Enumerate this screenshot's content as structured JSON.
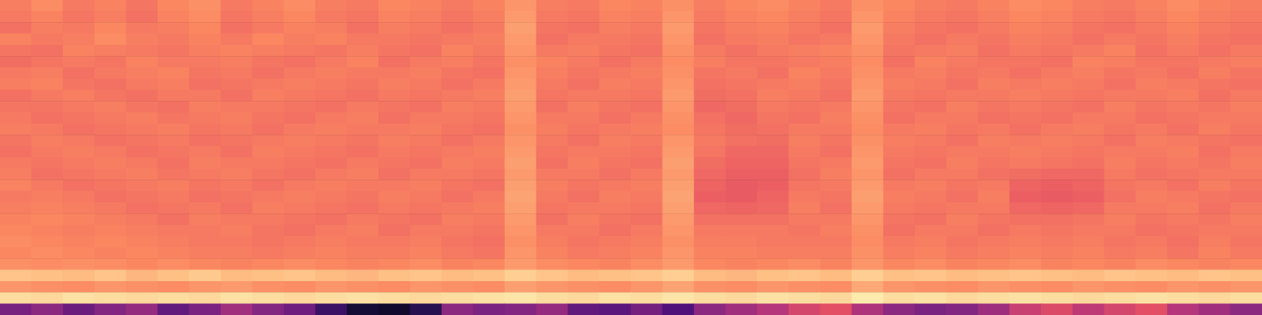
{
  "chart_data": {
    "type": "heatmap",
    "tick_labels": false,
    "zlim": [
      0,
      100
    ],
    "cells": [
      [
        73,
        76,
        72,
        74,
        71,
        75,
        77,
        72,
        74,
        76,
        73,
        72,
        75,
        74,
        72,
        74,
        78,
        73,
        72,
        75,
        74,
        77,
        73,
        75,
        76,
        74,
        72,
        77,
        75,
        73,
        72,
        74,
        76,
        75,
        73,
        72,
        74,
        76,
        74,
        73
      ],
      [
        72,
        74,
        71,
        73,
        70,
        74,
        76,
        71,
        73,
        75,
        72,
        71,
        74,
        73,
        71,
        73,
        79,
        72,
        71,
        74,
        73,
        78,
        72,
        74,
        75,
        73,
        71,
        78,
        74,
        72,
        71,
        73,
        75,
        74,
        72,
        71,
        73,
        75,
        73,
        72
      ],
      [
        70,
        73,
        72,
        75,
        72,
        73,
        75,
        70,
        72,
        74,
        73,
        70,
        73,
        72,
        70,
        72,
        80,
        71,
        70,
        73,
        72,
        79,
        71,
        73,
        74,
        72,
        70,
        79,
        73,
        71,
        70,
        72,
        74,
        73,
        71,
        70,
        72,
        74,
        72,
        71
      ],
      [
        74,
        72,
        73,
        76,
        73,
        72,
        74,
        72,
        75,
        73,
        74,
        72,
        72,
        71,
        72,
        73,
        79,
        70,
        72,
        72,
        71,
        78,
        70,
        72,
        73,
        71,
        72,
        78,
        72,
        70,
        72,
        71,
        73,
        72,
        70,
        72,
        71,
        73,
        71,
        70
      ],
      [
        71,
        70,
        74,
        73,
        72,
        71,
        73,
        74,
        73,
        72,
        71,
        73,
        71,
        70,
        74,
        72,
        78,
        72,
        73,
        71,
        70,
        77,
        72,
        70,
        72,
        73,
        74,
        77,
        71,
        72,
        73,
        70,
        72,
        71,
        72,
        74,
        70,
        72,
        70,
        72
      ],
      [
        69,
        71,
        72,
        71,
        74,
        72,
        72,
        73,
        71,
        70,
        72,
        74,
        70,
        72,
        73,
        71,
        77,
        74,
        72,
        70,
        72,
        76,
        73,
        71,
        71,
        72,
        73,
        76,
        70,
        74,
        72,
        71,
        71,
        70,
        74,
        73,
        71,
        71,
        72,
        73
      ],
      [
        72,
        73,
        70,
        72,
        73,
        74,
        71,
        72,
        70,
        72,
        73,
        72,
        72,
        73,
        71,
        70,
        78,
        73,
        71,
        72,
        73,
        77,
        71,
        72,
        70,
        74,
        72,
        77,
        72,
        73,
        71,
        72,
        70,
        72,
        73,
        71,
        72,
        70,
        73,
        71
      ],
      [
        73,
        74,
        71,
        70,
        72,
        73,
        70,
        71,
        72,
        73,
        72,
        71,
        73,
        72,
        70,
        72,
        79,
        72,
        70,
        73,
        72,
        78,
        70,
        71,
        72,
        73,
        71,
        78,
        73,
        72,
        70,
        73,
        72,
        73,
        72,
        70,
        73,
        72,
        71,
        70
      ],
      [
        70,
        72,
        73,
        71,
        70,
        72,
        72,
        70,
        73,
        72,
        71,
        70,
        72,
        71,
        72,
        73,
        80,
        71,
        72,
        72,
        71,
        79,
        69,
        70,
        73,
        72,
        70,
        79,
        72,
        71,
        72,
        72,
        73,
        72,
        71,
        72,
        72,
        73,
        70,
        72
      ],
      [
        71,
        71,
        72,
        73,
        71,
        70,
        73,
        72,
        72,
        71,
        70,
        72,
        71,
        70,
        73,
        72,
        79,
        70,
        73,
        71,
        70,
        78,
        68,
        69,
        72,
        71,
        72,
        78,
        71,
        70,
        73,
        71,
        72,
        71,
        70,
        73,
        71,
        72,
        71,
        73
      ],
      [
        72,
        70,
        71,
        72,
        73,
        71,
        72,
        73,
        71,
        70,
        72,
        73,
        70,
        72,
        72,
        71,
        78,
        72,
        72,
        70,
        72,
        77,
        70,
        68,
        71,
        70,
        73,
        77,
        70,
        72,
        72,
        70,
        71,
        70,
        72,
        72,
        70,
        71,
        72,
        72
      ],
      [
        73,
        72,
        70,
        71,
        72,
        73,
        71,
        72,
        70,
        72,
        73,
        72,
        72,
        73,
        71,
        70,
        77,
        73,
        71,
        72,
        73,
        76,
        71,
        69,
        70,
        72,
        72,
        76,
        72,
        73,
        71,
        72,
        70,
        72,
        73,
        71,
        72,
        70,
        73,
        71
      ],
      [
        71,
        73,
        72,
        70,
        71,
        72,
        70,
        71,
        72,
        73,
        72,
        71,
        73,
        72,
        70,
        72,
        78,
        72,
        70,
        73,
        72,
        78,
        72,
        70,
        69,
        73,
        71,
        77,
        73,
        72,
        70,
        73,
        72,
        73,
        72,
        70,
        73,
        72,
        71,
        70
      ],
      [
        70,
        72,
        73,
        72,
        70,
        71,
        72,
        70,
        73,
        72,
        71,
        70,
        72,
        71,
        72,
        73,
        79,
        71,
        72,
        72,
        71,
        79,
        71,
        68,
        68,
        72,
        70,
        78,
        72,
        71,
        72,
        72,
        73,
        72,
        71,
        72,
        72,
        73,
        70,
        72
      ],
      [
        72,
        71,
        72,
        73,
        72,
        70,
        73,
        72,
        72,
        71,
        70,
        72,
        71,
        70,
        73,
        72,
        80,
        70,
        73,
        71,
        70,
        80,
        69,
        67,
        67,
        71,
        72,
        79,
        71,
        70,
        73,
        71,
        72,
        71,
        70,
        73,
        71,
        72,
        71,
        73
      ],
      [
        73,
        70,
        71,
        72,
        73,
        71,
        72,
        73,
        71,
        70,
        72,
        73,
        70,
        72,
        72,
        71,
        79,
        72,
        72,
        70,
        72,
        79,
        68,
        66,
        66,
        70,
        73,
        78,
        70,
        72,
        72,
        70,
        69,
        68,
        68,
        72,
        70,
        71,
        72,
        72
      ],
      [
        74,
        72,
        70,
        71,
        72,
        73,
        71,
        72,
        70,
        72,
        73,
        72,
        72,
        73,
        71,
        70,
        80,
        73,
        71,
        72,
        73,
        80,
        67,
        65,
        66,
        71,
        72,
        79,
        72,
        73,
        71,
        72,
        67,
        66,
        67,
        71,
        72,
        70,
        73,
        71
      ],
      [
        72,
        73,
        72,
        70,
        71,
        72,
        70,
        71,
        72,
        73,
        72,
        71,
        73,
        72,
        70,
        72,
        81,
        72,
        70,
        73,
        72,
        81,
        66,
        65,
        67,
        72,
        71,
        80,
        73,
        72,
        70,
        73,
        66,
        65,
        66,
        70,
        73,
        72,
        71,
        70
      ],
      [
        73,
        74,
        73,
        72,
        70,
        71,
        72,
        70,
        73,
        72,
        71,
        70,
        72,
        71,
        72,
        73,
        80,
        71,
        72,
        72,
        71,
        80,
        68,
        67,
        68,
        73,
        70,
        79,
        72,
        71,
        72,
        72,
        68,
        67,
        68,
        72,
        72,
        73,
        70,
        72
      ],
      [
        74,
        75,
        74,
        73,
        72,
        70,
        73,
        72,
        72,
        71,
        70,
        72,
        71,
        70,
        73,
        72,
        79,
        70,
        73,
        71,
        70,
        79,
        70,
        70,
        70,
        72,
        72,
        78,
        71,
        70,
        73,
        71,
        70,
        70,
        71,
        73,
        71,
        72,
        71,
        73
      ],
      [
        75,
        74,
        73,
        74,
        73,
        72,
        72,
        73,
        71,
        70,
        72,
        73,
        70,
        72,
        72,
        71,
        78,
        72,
        72,
        70,
        72,
        78,
        72,
        72,
        72,
        71,
        73,
        77,
        70,
        72,
        72,
        70,
        72,
        71,
        72,
        72,
        70,
        71,
        72,
        72
      ],
      [
        76,
        75,
        74,
        75,
        74,
        73,
        72,
        72,
        71,
        72,
        73,
        72,
        72,
        73,
        71,
        70,
        77,
        73,
        71,
        72,
        73,
        77,
        73,
        73,
        72,
        72,
        72,
        76,
        72,
        73,
        71,
        72,
        73,
        72,
        73,
        71,
        72,
        70,
        73,
        71
      ],
      [
        75,
        76,
        75,
        74,
        75,
        74,
        73,
        73,
        72,
        73,
        74,
        73,
        73,
        74,
        72,
        71,
        78,
        74,
        72,
        73,
        74,
        78,
        74,
        74,
        73,
        73,
        73,
        77,
        73,
        74,
        72,
        73,
        74,
        73,
        74,
        72,
        73,
        71,
        74,
        72
      ],
      [
        77,
        76,
        77,
        76,
        75,
        76,
        75,
        74,
        75,
        76,
        75,
        74,
        75,
        76,
        74,
        75,
        79,
        76,
        75,
        74,
        76,
        79,
        75,
        74,
        75,
        76,
        74,
        78,
        75,
        76,
        74,
        75,
        76,
        74,
        75,
        74,
        76,
        75,
        74,
        75
      ],
      [
        88,
        87,
        86,
        88,
        85,
        87,
        89,
        86,
        87,
        88,
        86,
        85,
        87,
        88,
        86,
        87,
        90,
        88,
        86,
        87,
        88,
        90,
        86,
        85,
        87,
        88,
        86,
        90,
        87,
        88,
        86,
        87,
        88,
        87,
        86,
        88,
        87,
        86,
        88,
        87
      ],
      [
        78,
        77,
        76,
        78,
        77,
        76,
        78,
        79,
        77,
        76,
        78,
        77,
        76,
        78,
        77,
        76,
        80,
        78,
        77,
        76,
        78,
        81,
        77,
        76,
        78,
        77,
        76,
        82,
        78,
        77,
        76,
        78,
        77,
        76,
        78,
        77,
        76,
        78,
        77,
        78
      ],
      [
        93,
        92,
        94,
        93,
        92,
        93,
        92,
        94,
        93,
        92,
        93,
        94,
        93,
        92,
        93,
        94,
        95,
        93,
        92,
        94,
        93,
        95,
        93,
        92,
        94,
        93,
        92,
        96,
        93,
        94,
        92,
        93,
        94,
        93,
        92,
        93,
        94,
        93,
        92,
        93
      ],
      [
        35,
        40,
        32,
        38,
        42,
        30,
        36,
        45,
        38,
        33,
        20,
        10,
        8,
        15,
        40,
        36,
        38,
        42,
        30,
        28,
        34,
        25,
        40,
        45,
        50,
        58,
        62,
        48,
        40,
        36,
        38,
        44,
        55,
        60,
        52,
        58,
        62,
        50,
        45,
        40
      ]
    ]
  }
}
